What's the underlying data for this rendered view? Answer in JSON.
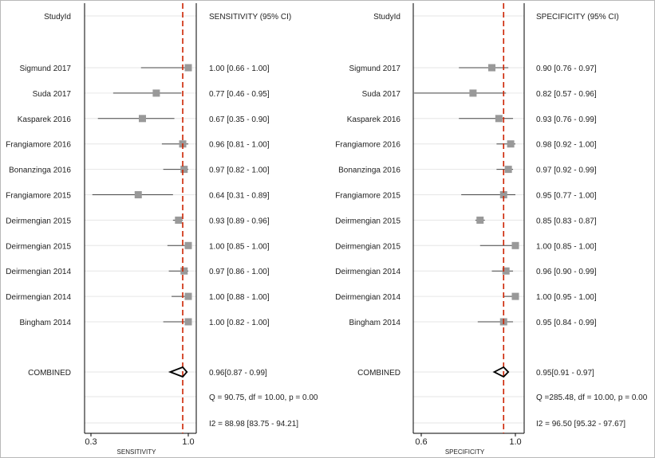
{
  "colors": {
    "background": "#ffffff",
    "axis": "#000000",
    "gridline": "#e6e6e6",
    "ci_line": "#444444",
    "point": "#999999",
    "reference_line": "#cc2200",
    "diamond": "#000000"
  },
  "chart_data": [
    {
      "type": "forest",
      "panel": "sensitivity",
      "label_header": "StudyId",
      "value_header": "SENSITIVITY (95% CI)",
      "xlabel": "SENSITIVITY",
      "xlim": [
        0.3,
        1.0
      ],
      "ticks": [
        "0.3",
        "1.0"
      ],
      "reference_value": 0.96,
      "studies": [
        {
          "label": "Sigmund 2017",
          "estimate": 1.0,
          "lower": 0.66,
          "upper": 1.0,
          "text": "1.00 [0.66 - 1.00]"
        },
        {
          "label": "Suda 2017",
          "estimate": 0.77,
          "lower": 0.46,
          "upper": 0.95,
          "text": "0.77 [0.46 - 0.95]"
        },
        {
          "label": "Kasparek 2016",
          "estimate": 0.67,
          "lower": 0.35,
          "upper": 0.9,
          "text": "0.67 [0.35 - 0.90]"
        },
        {
          "label": "Frangiamore 2016",
          "estimate": 0.96,
          "lower": 0.81,
          "upper": 1.0,
          "text": "0.96 [0.81 - 1.00]"
        },
        {
          "label": "Bonanzinga 2016",
          "estimate": 0.97,
          "lower": 0.82,
          "upper": 1.0,
          "text": "0.97 [0.82 - 1.00]"
        },
        {
          "label": "Frangiamore 2015",
          "estimate": 0.64,
          "lower": 0.31,
          "upper": 0.89,
          "text": "0.64 [0.31 - 0.89]"
        },
        {
          "label": "Deirmengian 2015",
          "estimate": 0.93,
          "lower": 0.89,
          "upper": 0.96,
          "text": "0.93 [0.89 - 0.96]"
        },
        {
          "label": "Deirmengian 2015",
          "estimate": 1.0,
          "lower": 0.85,
          "upper": 1.0,
          "text": "1.00 [0.85 - 1.00]"
        },
        {
          "label": "Deirmengian 2014",
          "estimate": 0.97,
          "lower": 0.86,
          "upper": 1.0,
          "text": "0.97 [0.86 - 1.00]"
        },
        {
          "label": "Deirmengian 2014",
          "estimate": 1.0,
          "lower": 0.88,
          "upper": 1.0,
          "text": "1.00 [0.88 - 1.00]"
        },
        {
          "label": "Bingham 2014",
          "estimate": 1.0,
          "lower": 0.82,
          "upper": 1.0,
          "text": "1.00 [0.82 - 1.00]"
        }
      ],
      "combined": {
        "label": "COMBINED",
        "estimate": 0.96,
        "lower": 0.87,
        "upper": 0.99,
        "text": "0.96[0.87 - 0.99]"
      },
      "heterogeneity_q": "Q = 90.75, df = 10.00, p =  0.00",
      "heterogeneity_i2": "I2 = 88.98 [83.75 - 94.21]"
    },
    {
      "type": "forest",
      "panel": "specificity",
      "label_header": "StudyId",
      "value_header": "SPECIFICITY (95% CI)",
      "xlabel": "SPECIFICITY",
      "xlim": [
        0.6,
        1.0
      ],
      "ticks": [
        "0.6",
        "1.0"
      ],
      "reference_value": 0.95,
      "studies": [
        {
          "label": "Sigmund 2017",
          "estimate": 0.9,
          "lower": 0.76,
          "upper": 0.97,
          "text": "0.90 [0.76 - 0.97]"
        },
        {
          "label": "Suda 2017",
          "estimate": 0.82,
          "lower": 0.57,
          "upper": 0.96,
          "text": "0.82 [0.57 - 0.96]"
        },
        {
          "label": "Kasparek 2016",
          "estimate": 0.93,
          "lower": 0.76,
          "upper": 0.99,
          "text": "0.93 [0.76 - 0.99]"
        },
        {
          "label": "Frangiamore 2016",
          "estimate": 0.98,
          "lower": 0.92,
          "upper": 1.0,
          "text": "0.98 [0.92 - 1.00]"
        },
        {
          "label": "Bonanzinga 2016",
          "estimate": 0.97,
          "lower": 0.92,
          "upper": 0.99,
          "text": "0.97 [0.92 - 0.99]"
        },
        {
          "label": "Frangiamore 2015",
          "estimate": 0.95,
          "lower": 0.77,
          "upper": 1.0,
          "text": "0.95 [0.77 - 1.00]"
        },
        {
          "label": "Deirmengian 2015",
          "estimate": 0.85,
          "lower": 0.83,
          "upper": 0.87,
          "text": "0.85 [0.83 - 0.87]"
        },
        {
          "label": "Deirmengian 2015",
          "estimate": 1.0,
          "lower": 0.85,
          "upper": 1.0,
          "text": "1.00 [0.85 - 1.00]"
        },
        {
          "label": "Deirmengian 2014",
          "estimate": 0.96,
          "lower": 0.9,
          "upper": 0.99,
          "text": "0.96 [0.90 - 0.99]"
        },
        {
          "label": "Deirmengian 2014",
          "estimate": 1.0,
          "lower": 0.95,
          "upper": 1.0,
          "text": "1.00 [0.95 - 1.00]"
        },
        {
          "label": "Bingham 2014",
          "estimate": 0.95,
          "lower": 0.84,
          "upper": 0.99,
          "text": "0.95 [0.84 - 0.99]"
        }
      ],
      "combined": {
        "label": "COMBINED",
        "estimate": 0.95,
        "lower": 0.91,
        "upper": 0.97,
        "text": "0.95[0.91 - 0.97]"
      },
      "heterogeneity_q": "Q =285.48, df = 10.00, p =  0.00",
      "heterogeneity_i2": "I2 = 96.50 [95.32 - 97.67]"
    }
  ]
}
